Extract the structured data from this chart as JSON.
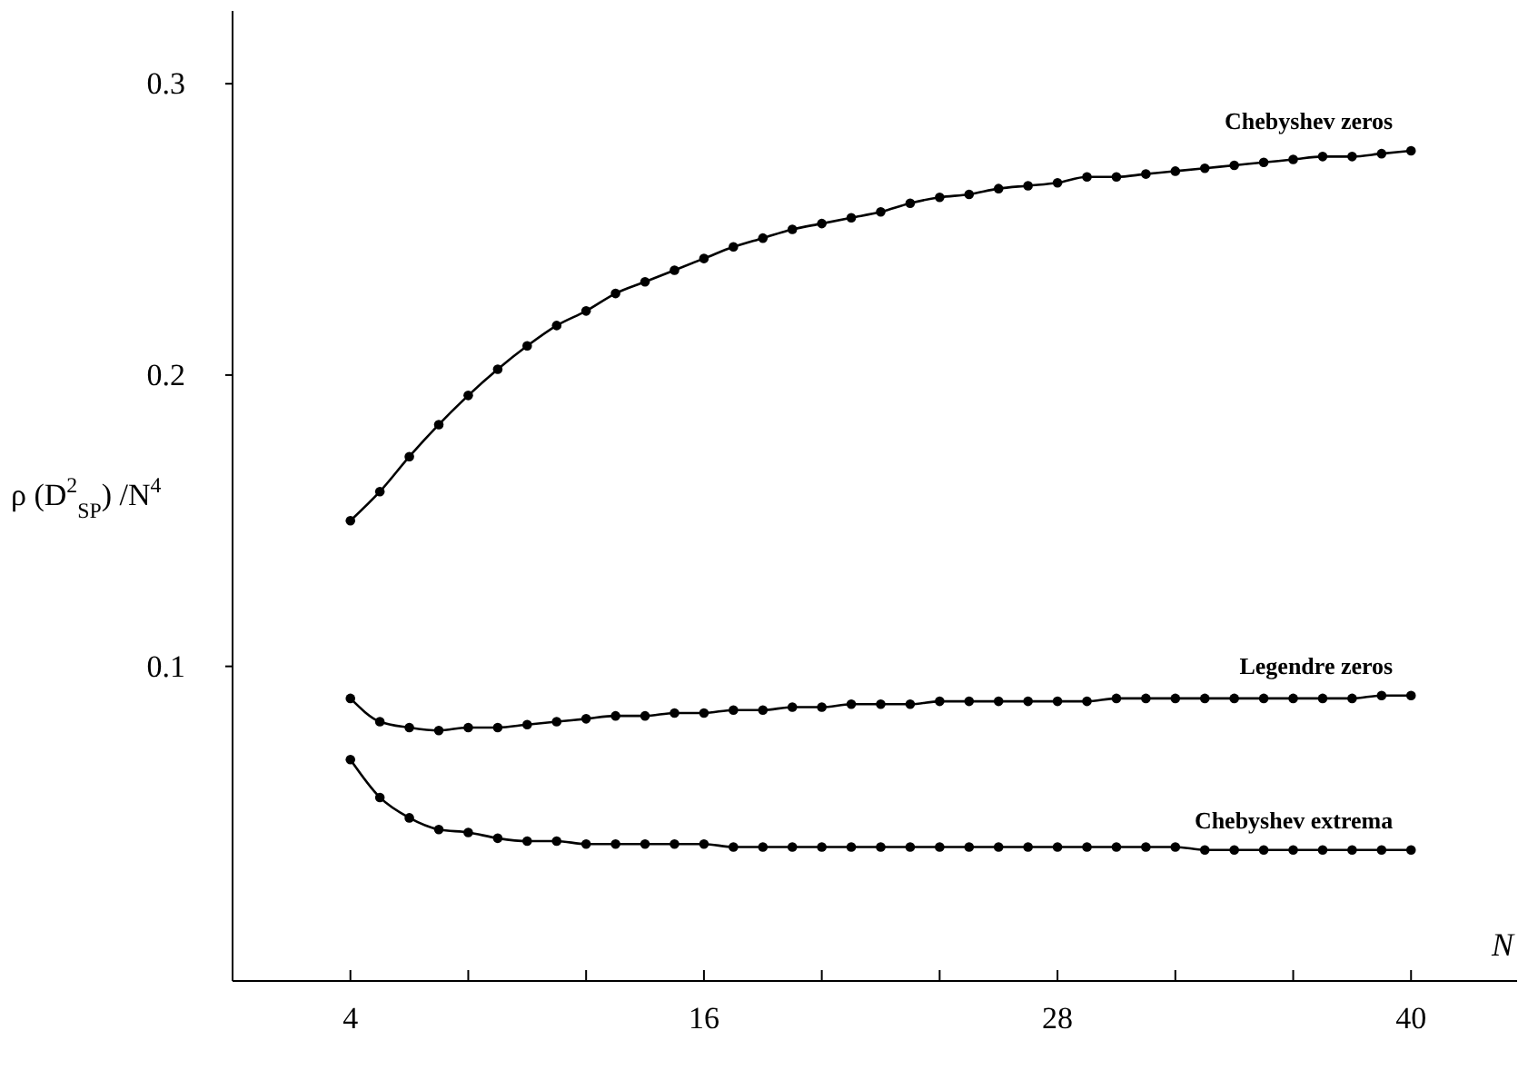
{
  "chart_data": {
    "type": "line",
    "xlabel": "N",
    "ylabel": "ρ (D$^{2}$$_{SP}$) /N$^{4}$",
    "x": [
      4,
      5,
      6,
      7,
      8,
      9,
      10,
      11,
      12,
      13,
      14,
      15,
      16,
      17,
      18,
      19,
      20,
      21,
      22,
      23,
      24,
      25,
      26,
      27,
      28,
      29,
      30,
      31,
      32,
      33,
      34,
      35,
      36,
      37,
      38,
      39,
      40
    ],
    "xlim": [
      0,
      43.6
    ],
    "ylim": [
      -0.008,
      0.325
    ],
    "xticks": [
      {
        "value": 4,
        "label": "4"
      },
      {
        "value": 8,
        "label": null
      },
      {
        "value": 12,
        "label": null
      },
      {
        "value": 16,
        "label": "16"
      },
      {
        "value": 20,
        "label": null
      },
      {
        "value": 24,
        "label": null
      },
      {
        "value": 28,
        "label": "28"
      },
      {
        "value": 32,
        "label": null
      },
      {
        "value": 36,
        "label": null
      },
      {
        "value": 40,
        "label": "40"
      }
    ],
    "yticks": [
      0.1,
      0.2,
      0.3
    ],
    "marker": "circle",
    "line_style": "solid",
    "grid": false,
    "legend": false,
    "series": [
      {
        "name": "Chebyshev zeros",
        "color": "#000000",
        "values": [
          0.15,
          0.16,
          0.172,
          0.183,
          0.193,
          0.202,
          0.21,
          0.217,
          0.222,
          0.228,
          0.232,
          0.236,
          0.24,
          0.244,
          0.247,
          0.25,
          0.252,
          0.254,
          0.256,
          0.259,
          0.261,
          0.262,
          0.264,
          0.265,
          0.266,
          0.268,
          0.268,
          0.269,
          0.27,
          0.271,
          0.272,
          0.273,
          0.274,
          0.275,
          0.275,
          0.276,
          0.277
        ]
      },
      {
        "name": "Legendre zeros",
        "color": "#000000",
        "values": [
          0.089,
          0.081,
          0.079,
          0.078,
          0.079,
          0.079,
          0.08,
          0.081,
          0.082,
          0.083,
          0.083,
          0.084,
          0.084,
          0.085,
          0.085,
          0.086,
          0.086,
          0.087,
          0.087,
          0.087,
          0.088,
          0.088,
          0.088,
          0.088,
          0.088,
          0.088,
          0.089,
          0.089,
          0.089,
          0.089,
          0.089,
          0.089,
          0.089,
          0.089,
          0.089,
          0.09,
          0.09
        ]
      },
      {
        "name": "Chebyshev extrema",
        "color": "#000000",
        "values": [
          0.068,
          0.055,
          0.048,
          0.044,
          0.043,
          0.041,
          0.04,
          0.04,
          0.039,
          0.039,
          0.039,
          0.039,
          0.039,
          0.038,
          0.038,
          0.038,
          0.038,
          0.038,
          0.038,
          0.038,
          0.038,
          0.038,
          0.038,
          0.038,
          0.038,
          0.038,
          0.038,
          0.038,
          0.038,
          0.037,
          0.037,
          0.037,
          0.037,
          0.037,
          0.037,
          0.037,
          0.037
        ]
      }
    ]
  }
}
